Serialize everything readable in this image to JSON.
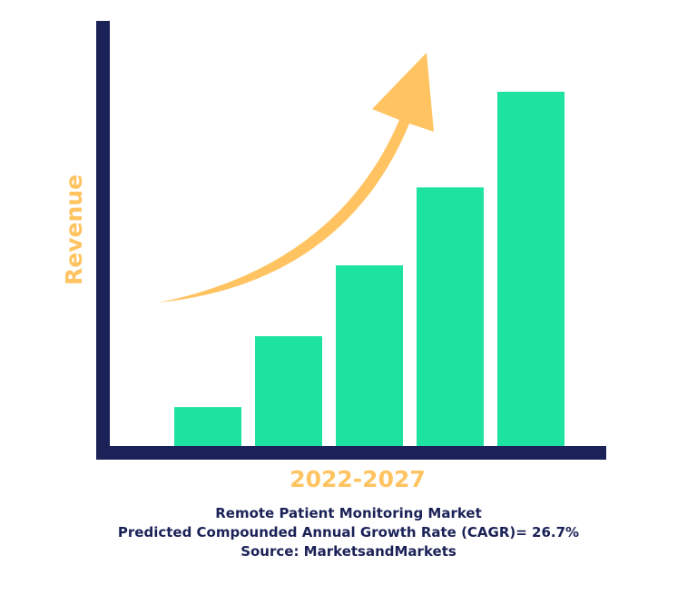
{
  "chart_data": {
    "type": "bar",
    "title": "",
    "xlabel": "2022-2027",
    "ylabel": "Revenue",
    "categories": [
      "",
      "",
      "",
      "",
      ""
    ],
    "values": [
      11,
      31,
      51,
      73,
      100
    ],
    "ylim": [
      0,
      120
    ],
    "grid": false,
    "legend": "none",
    "annotations": [
      "upward growth arrow"
    ]
  },
  "caption": {
    "line1": "Remote Patient Monitoring Market",
    "line2": "Predicted Compounded Annual Growth Rate (CAGR)= 26.7%",
    "line3": "Source: MarketsandMarkets"
  },
  "colors": {
    "axis": "#1b2257",
    "bars": "#1ee3a0",
    "accent": "#ffc461",
    "text": "#1b2257"
  }
}
